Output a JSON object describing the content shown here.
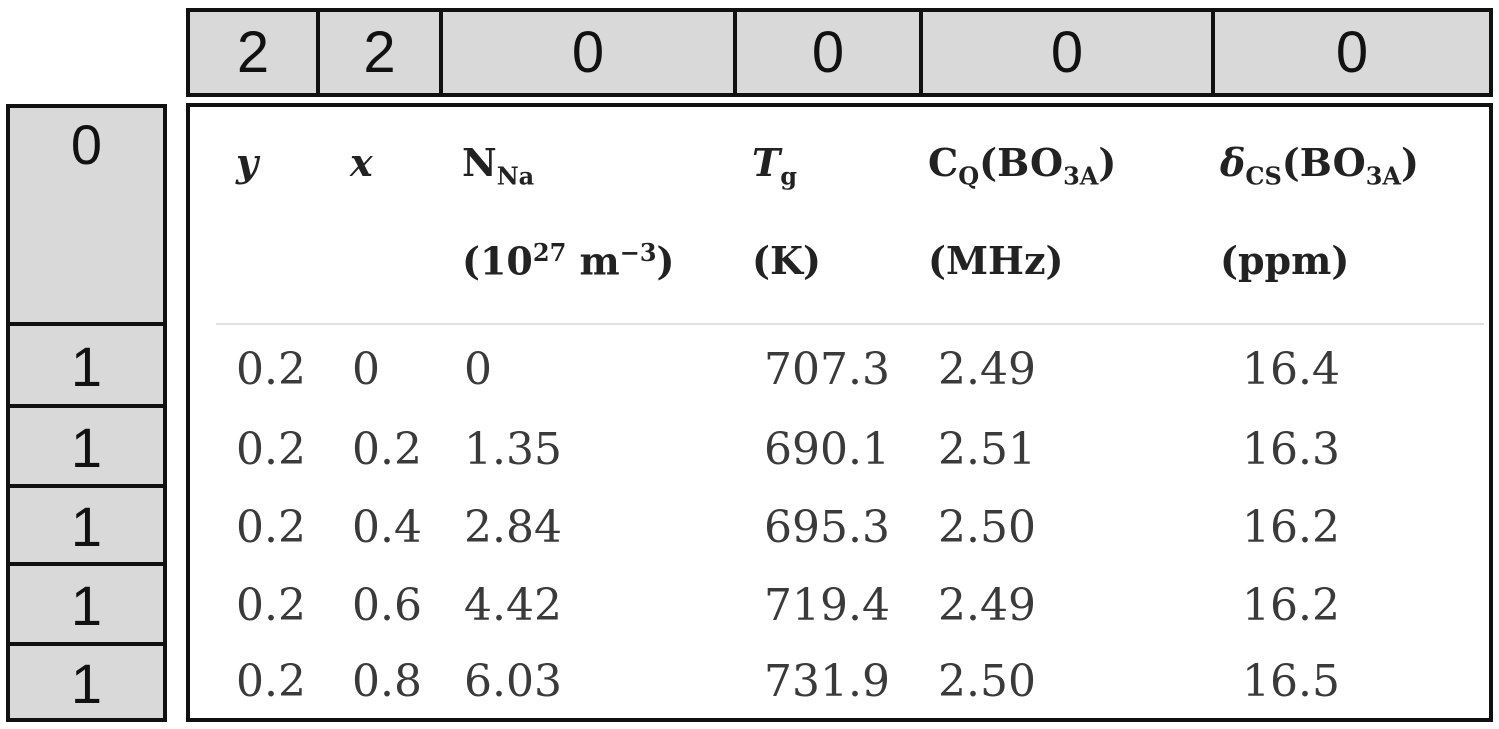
{
  "column_codes": [
    "2",
    "2",
    "0",
    "0",
    "0",
    "0"
  ],
  "row_codes": [
    "0",
    "1",
    "1",
    "1",
    "1",
    "1"
  ],
  "table": {
    "headers": {
      "y": "y",
      "x": "x",
      "n_na": {
        "base": "N",
        "sub": "Na"
      },
      "tg": {
        "base": "T",
        "sub": "g"
      },
      "cq": {
        "base": "C",
        "sub": "Q",
        "suffix": "(BO",
        "sub2": "3A",
        "end": ")"
      },
      "dcs": {
        "base": "δ",
        "sub": "CS",
        "suffix": "(BO",
        "sub2": "3A",
        "end": ")"
      }
    },
    "units": {
      "n_na": {
        "open": "(10",
        "sup": "27",
        "mid": " m",
        "sup2": "−3",
        "close": ")"
      },
      "tg": "(K)",
      "cq": "(MHz)",
      "dcs": "(ppm)"
    },
    "rows": [
      [
        "0.2",
        "0",
        "0",
        "707.3",
        "2.49",
        "16.4"
      ],
      [
        "0.2",
        "0.2",
        "1.35",
        "690.1",
        "2.51",
        "16.3"
      ],
      [
        "0.2",
        "0.4",
        "2.84",
        "695.3",
        "2.50",
        "16.2"
      ],
      [
        "0.2",
        "0.6",
        "4.42",
        "719.4",
        "2.49",
        "16.2"
      ],
      [
        "0.2",
        "0.8",
        "6.03",
        "731.9",
        "2.50",
        "16.5"
      ]
    ]
  }
}
